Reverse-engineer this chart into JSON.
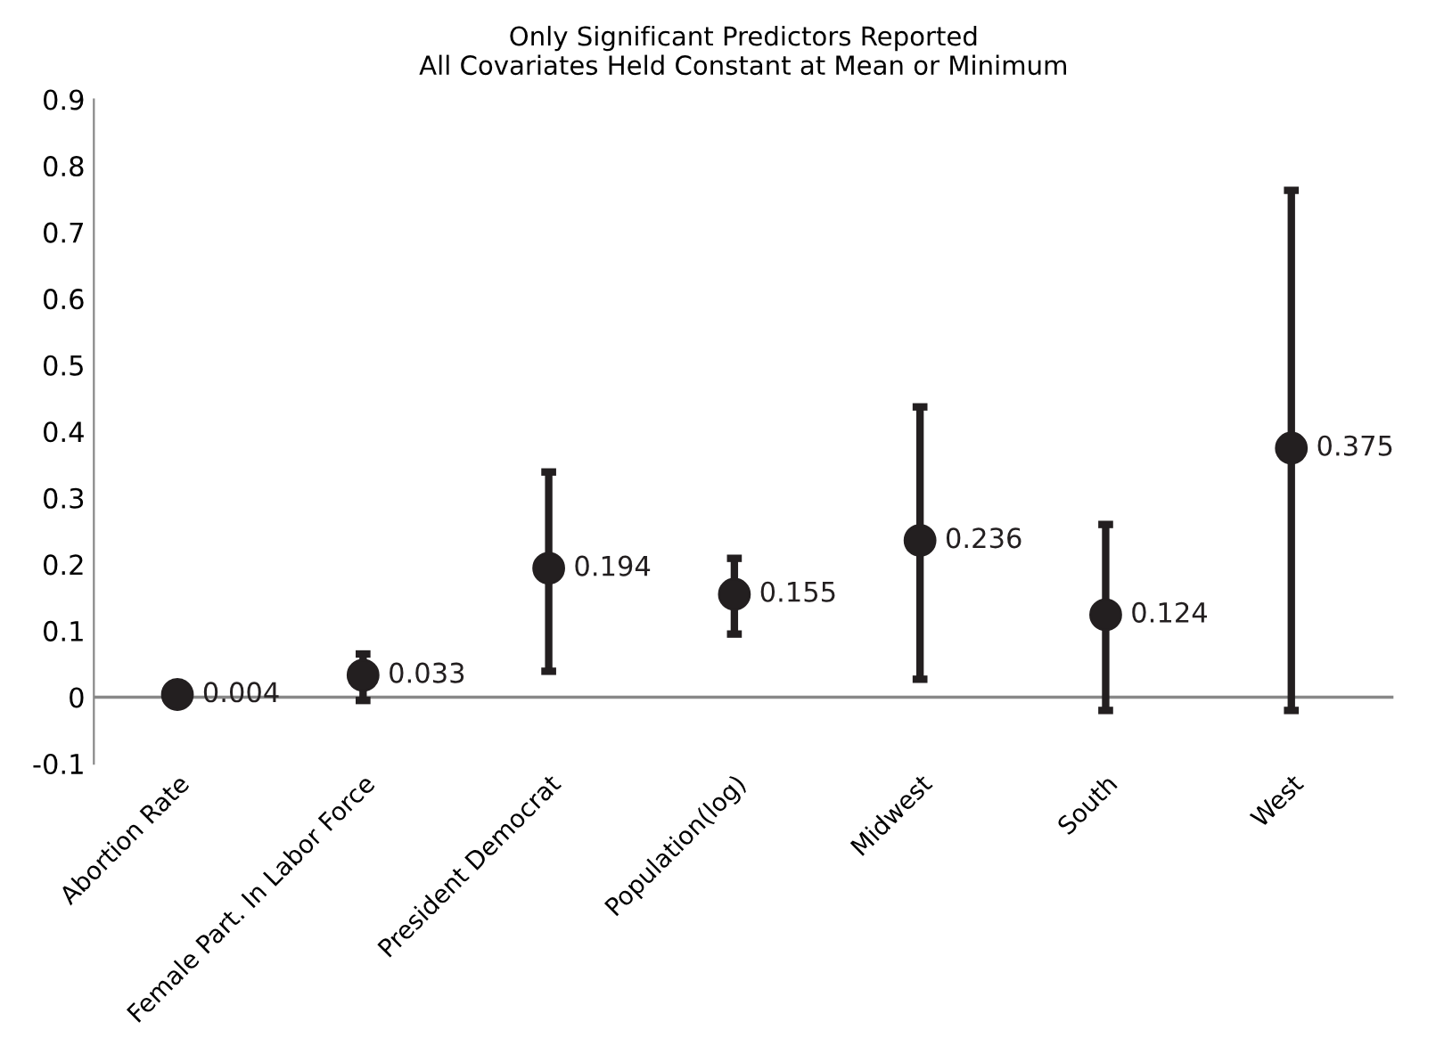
{
  "chart_data": {
    "type": "scatter",
    "title": "Only Significant Predictors Reported\nAll Covariates Held Constant at Mean or Minimum",
    "categories": [
      "Abortion Rate",
      "Female Part. In Labor Force",
      "President Democrat",
      "Population(log)",
      "Midwest",
      "South",
      "West"
    ],
    "values": [
      0.004,
      0.033,
      0.194,
      0.155,
      0.236,
      0.124,
      0.375
    ],
    "errors": [
      null,
      [
        -0.005,
        0.065
      ],
      [
        0.039,
        0.339
      ],
      [
        0.095,
        0.209
      ],
      [
        0.027,
        0.437
      ],
      [
        -0.02,
        0.26
      ],
      [
        -0.02,
        0.763
      ]
    ],
    "color": "#231f20",
    "marker": "circle",
    "data_labels": true,
    "grid": false,
    "legend": false,
    "ylim": [
      -0.1,
      0.9
    ],
    "yticks": [
      {
        "value": -0.1,
        "label": "-0.1"
      },
      0,
      0.1,
      0.2,
      0.3,
      0.4,
      0.5,
      0.6,
      0.7,
      0.8,
      0.9
    ]
  }
}
